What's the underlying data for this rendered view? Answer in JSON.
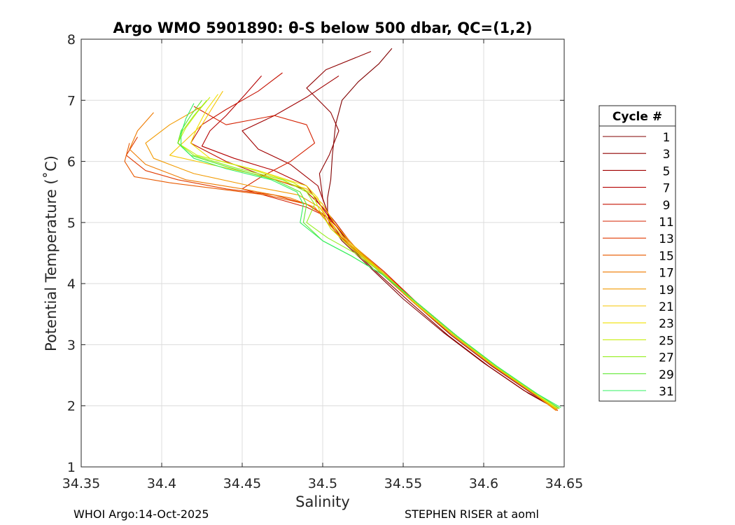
{
  "chart_data": {
    "type": "line",
    "title": "Argo WMO 5901890: θ-S below 500 dbar,  QC=(1,2)",
    "xlabel": "Salinity",
    "ylabel": "Potential Temperature (˚C)",
    "xlim": [
      34.35,
      34.65
    ],
    "ylim": [
      1,
      8
    ],
    "xticks": [
      "34.35",
      "34.4",
      "34.45",
      "34.5",
      "34.55",
      "34.6",
      "34.65"
    ],
    "yticks": [
      "1",
      "2",
      "3",
      "4",
      "5",
      "6",
      "7",
      "8"
    ],
    "grid": true,
    "legend": {
      "title": "Cycle #",
      "placement": "outside-right",
      "entries": [
        {
          "label": "1",
          "color": "#800000"
        },
        {
          "label": "3",
          "color": "#8f0000"
        },
        {
          "label": "5",
          "color": "#a00000"
        },
        {
          "label": "7",
          "color": "#b40000"
        },
        {
          "label": "9",
          "color": "#c41000"
        },
        {
          "label": "11",
          "color": "#d42000"
        },
        {
          "label": "13",
          "color": "#e03a00"
        },
        {
          "label": "15",
          "color": "#e85a00"
        },
        {
          "label": "17",
          "color": "#ee7a00"
        },
        {
          "label": "19",
          "color": "#f29a00"
        },
        {
          "label": "21",
          "color": "#f5c400"
        },
        {
          "label": "23",
          "color": "#f0e000"
        },
        {
          "label": "25",
          "color": "#c8ee10"
        },
        {
          "label": "27",
          "color": "#96ee20"
        },
        {
          "label": "29",
          "color": "#5ee830"
        },
        {
          "label": "31",
          "color": "#30f060"
        }
      ]
    },
    "series": [
      {
        "name": "1",
        "color": "#800000",
        "x": [
          34.543,
          34.535,
          34.522,
          34.512,
          34.508,
          34.506,
          34.505,
          34.503,
          34.503,
          34.504,
          34.512,
          34.53,
          34.55,
          34.575,
          34.6,
          34.625,
          34.646
        ],
        "y": [
          7.85,
          7.6,
          7.3,
          7.0,
          6.6,
          6.1,
          5.7,
          5.4,
          5.2,
          5.0,
          4.7,
          4.25,
          3.75,
          3.2,
          2.7,
          2.25,
          1.95
        ]
      },
      {
        "name": "3",
        "color": "#8f0000",
        "x": [
          34.53,
          34.502,
          34.49,
          34.505,
          34.51,
          34.504,
          34.498,
          34.5,
          34.505,
          34.513,
          34.533,
          34.554,
          34.578,
          34.603,
          34.628,
          34.645
        ],
        "y": [
          7.8,
          7.5,
          7.2,
          6.8,
          6.5,
          6.1,
          5.8,
          5.4,
          5.0,
          4.7,
          4.2,
          3.7,
          3.15,
          2.65,
          2.2,
          1.95
        ]
      },
      {
        "name": "5",
        "color": "#a00000",
        "x": [
          34.51,
          34.49,
          34.47,
          34.45,
          34.46,
          34.48,
          34.497,
          34.504,
          34.515,
          34.535,
          34.556,
          34.58,
          34.605,
          34.63,
          34.646
        ],
        "y": [
          7.4,
          7.05,
          6.75,
          6.5,
          6.2,
          5.95,
          5.6,
          5.1,
          4.7,
          4.2,
          3.7,
          3.15,
          2.65,
          2.2,
          1.95
        ]
      },
      {
        "name": "7",
        "color": "#b40000",
        "x": [
          34.462,
          34.452,
          34.44,
          34.43,
          34.425,
          34.445,
          34.47,
          34.49,
          34.498,
          34.505,
          34.516,
          34.536,
          34.557,
          34.582,
          34.607,
          34.632,
          34.645
        ],
        "y": [
          7.4,
          7.1,
          6.75,
          6.5,
          6.25,
          6.05,
          5.85,
          5.6,
          5.3,
          5.05,
          4.7,
          4.2,
          3.7,
          3.15,
          2.65,
          2.2,
          1.95
        ]
      },
      {
        "name": "9",
        "color": "#c41000",
        "x": [
          34.475,
          34.46,
          34.44,
          34.425,
          34.418,
          34.44,
          34.465,
          34.488,
          34.5,
          34.508,
          34.518,
          34.537,
          34.558,
          34.583,
          34.607,
          34.632,
          34.645
        ],
        "y": [
          7.45,
          7.15,
          6.85,
          6.6,
          6.3,
          6.0,
          5.75,
          5.55,
          5.25,
          5.0,
          4.65,
          4.2,
          3.7,
          3.15,
          2.65,
          2.2,
          1.95
        ]
      },
      {
        "name": "11",
        "color": "#d42000",
        "x": [
          34.42,
          34.44,
          34.47,
          34.49,
          34.495,
          34.48,
          34.462,
          34.45,
          34.47,
          34.49,
          34.502,
          34.51,
          34.52,
          34.538,
          34.558,
          34.583,
          34.607,
          34.632,
          34.646
        ],
        "y": [
          6.9,
          6.6,
          6.75,
          6.6,
          6.3,
          6.0,
          5.75,
          5.55,
          5.4,
          5.25,
          5.1,
          4.9,
          4.6,
          4.2,
          3.7,
          3.15,
          2.65,
          2.2,
          1.92
        ]
      },
      {
        "name": "13",
        "color": "#e03a00",
        "x": [
          34.385,
          34.378,
          34.39,
          34.41,
          34.44,
          34.47,
          34.49,
          34.502,
          34.508,
          34.52,
          34.538,
          34.558,
          34.583,
          34.607,
          34.632,
          34.646
        ],
        "y": [
          6.4,
          6.1,
          5.85,
          5.7,
          5.55,
          5.45,
          5.3,
          5.1,
          4.85,
          4.55,
          4.15,
          3.7,
          3.15,
          2.65,
          2.2,
          1.92
        ]
      },
      {
        "name": "15",
        "color": "#e85a00",
        "x": [
          34.38,
          34.377,
          34.383,
          34.405,
          34.435,
          34.465,
          34.49,
          34.5,
          34.505,
          34.518,
          34.537,
          34.557,
          34.582,
          34.607,
          34.632,
          34.646
        ],
        "y": [
          6.3,
          6.0,
          5.75,
          5.65,
          5.55,
          5.45,
          5.3,
          5.15,
          4.9,
          4.6,
          4.2,
          3.7,
          3.15,
          2.65,
          2.2,
          1.92
        ]
      },
      {
        "name": "17",
        "color": "#ee7a00",
        "x": [
          34.395,
          34.385,
          34.38,
          34.39,
          34.415,
          34.45,
          34.48,
          34.495,
          34.503,
          34.515,
          34.535,
          34.556,
          34.581,
          34.606,
          34.631,
          34.645
        ],
        "y": [
          6.8,
          6.5,
          6.2,
          5.95,
          5.7,
          5.55,
          5.4,
          5.25,
          5.0,
          4.65,
          4.2,
          3.7,
          3.15,
          2.65,
          2.2,
          1.92
        ]
      },
      {
        "name": "19",
        "color": "#f29a00",
        "x": [
          34.425,
          34.405,
          34.39,
          34.395,
          34.42,
          34.455,
          34.485,
          34.498,
          34.505,
          34.516,
          34.536,
          34.556,
          34.581,
          34.606,
          34.631,
          34.645
        ],
        "y": [
          6.9,
          6.6,
          6.3,
          6.05,
          5.8,
          5.6,
          5.45,
          5.25,
          5.0,
          4.65,
          4.2,
          3.7,
          3.15,
          2.65,
          2.2,
          1.93
        ]
      },
      {
        "name": "21",
        "color": "#f5c400",
        "x": [
          34.438,
          34.432,
          34.425,
          34.415,
          34.405,
          34.43,
          34.465,
          34.49,
          34.5,
          34.507,
          34.518,
          34.537,
          34.557,
          34.582,
          34.607,
          34.632,
          34.645
        ],
        "y": [
          7.15,
          6.9,
          6.6,
          6.35,
          6.1,
          5.95,
          5.75,
          5.55,
          5.3,
          5.0,
          4.65,
          4.2,
          3.7,
          3.15,
          2.65,
          2.2,
          1.95
        ]
      },
      {
        "name": "23",
        "color": "#f0e000",
        "x": [
          34.435,
          34.428,
          34.422,
          34.418,
          34.43,
          34.46,
          34.49,
          34.497,
          34.5,
          34.506,
          34.517,
          34.536,
          34.557,
          34.582,
          34.607,
          34.632,
          34.645
        ],
        "y": [
          7.1,
          6.85,
          6.55,
          6.3,
          6.05,
          5.85,
          5.6,
          5.4,
          5.2,
          4.95,
          4.65,
          4.2,
          3.7,
          3.15,
          2.65,
          2.2,
          1.95
        ]
      },
      {
        "name": "25",
        "color": "#c8ee10",
        "x": [
          34.43,
          34.422,
          34.415,
          34.41,
          34.422,
          34.452,
          34.482,
          34.494,
          34.498,
          34.505,
          34.517,
          34.536,
          34.557,
          34.582,
          34.607,
          34.632,
          34.646
        ],
        "y": [
          7.05,
          6.8,
          6.55,
          6.3,
          6.1,
          5.9,
          5.65,
          5.45,
          5.2,
          4.9,
          4.6,
          4.2,
          3.7,
          3.15,
          2.65,
          2.2,
          1.95
        ]
      },
      {
        "name": "27",
        "color": "#96ee20",
        "x": [
          34.428,
          34.42,
          34.413,
          34.41,
          34.42,
          34.445,
          34.475,
          34.49,
          34.495,
          34.49,
          34.503,
          34.52,
          34.538,
          34.558,
          34.583,
          34.608,
          34.633,
          34.647
        ],
        "y": [
          7.0,
          6.75,
          6.5,
          6.3,
          6.1,
          5.9,
          5.7,
          5.5,
          5.3,
          5.0,
          4.75,
          4.5,
          4.15,
          3.7,
          3.15,
          2.65,
          2.2,
          1.95
        ]
      },
      {
        "name": "29",
        "color": "#5ee830",
        "x": [
          34.425,
          34.418,
          34.412,
          34.41,
          34.418,
          34.442,
          34.47,
          34.486,
          34.49,
          34.488,
          34.5,
          34.518,
          34.537,
          34.558,
          34.583,
          34.608,
          34.633,
          34.647
        ],
        "y": [
          7.0,
          6.75,
          6.5,
          6.3,
          6.1,
          5.9,
          5.7,
          5.5,
          5.3,
          5.0,
          4.7,
          4.45,
          4.15,
          3.7,
          3.15,
          2.65,
          2.2,
          1.96
        ]
      },
      {
        "name": "31",
        "color": "#30f060",
        "x": [
          34.42,
          34.415,
          34.412,
          34.412,
          34.42,
          34.44,
          34.468,
          34.484,
          34.488,
          34.486,
          34.5,
          34.518,
          34.537,
          34.558,
          34.583,
          34.608,
          34.633,
          34.648
        ],
        "y": [
          6.95,
          6.7,
          6.45,
          6.25,
          6.05,
          5.88,
          5.7,
          5.5,
          5.3,
          5.0,
          4.7,
          4.45,
          4.15,
          3.7,
          3.15,
          2.65,
          2.2,
          1.97
        ]
      }
    ]
  },
  "footer": {
    "left": "WHOI Argo:14-Oct-2025",
    "right": "STEPHEN RISER at aoml"
  }
}
